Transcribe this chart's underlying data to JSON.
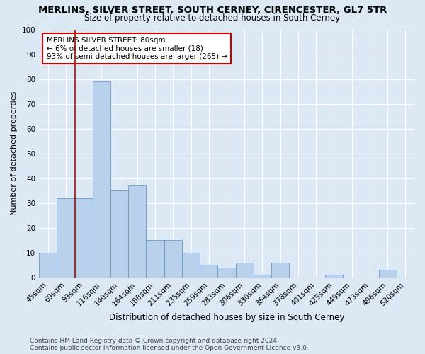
{
  "title": "MERLINS, SILVER STREET, SOUTH CERNEY, CIRENCESTER, GL7 5TR",
  "subtitle": "Size of property relative to detached houses in South Cerney",
  "xlabel": "Distribution of detached houses by size in South Cerney",
  "ylabel": "Number of detached properties",
  "categories": [
    "45sqm",
    "69sqm",
    "93sqm",
    "116sqm",
    "140sqm",
    "164sqm",
    "188sqm",
    "211sqm",
    "235sqm",
    "259sqm",
    "283sqm",
    "306sqm",
    "330sqm",
    "354sqm",
    "378sqm",
    "401sqm",
    "425sqm",
    "449sqm",
    "473sqm",
    "496sqm",
    "520sqm"
  ],
  "values": [
    10,
    32,
    32,
    79,
    35,
    37,
    15,
    15,
    10,
    5,
    4,
    6,
    1,
    6,
    0,
    0,
    1,
    0,
    0,
    3,
    0
  ],
  "bar_color": "#b8d0ea",
  "bar_edge_color": "#6699cc",
  "annotation_text": "MERLINS SILVER STREET: 80sqm\n← 6% of detached houses are smaller (18)\n93% of semi-detached houses are larger (265) →",
  "annotation_box_color": "#ffffff",
  "annotation_box_edge": "#cc0000",
  "vline_color": "#cc0000",
  "vline_x": 1.5,
  "footer": "Contains HM Land Registry data © Crown copyright and database right 2024.\nContains public sector information licensed under the Open Government Licence v3.0.",
  "background_color": "#dde8f5",
  "plot_bg_color": "#dde8f5",
  "ylim": [
    0,
    100
  ],
  "grid_color": "#ffffff",
  "title_fontsize": 9.5,
  "subtitle_fontsize": 8.5,
  "ylabel_fontsize": 8,
  "xlabel_fontsize": 8.5,
  "tick_fontsize": 7.5,
  "footer_fontsize": 6.5
}
